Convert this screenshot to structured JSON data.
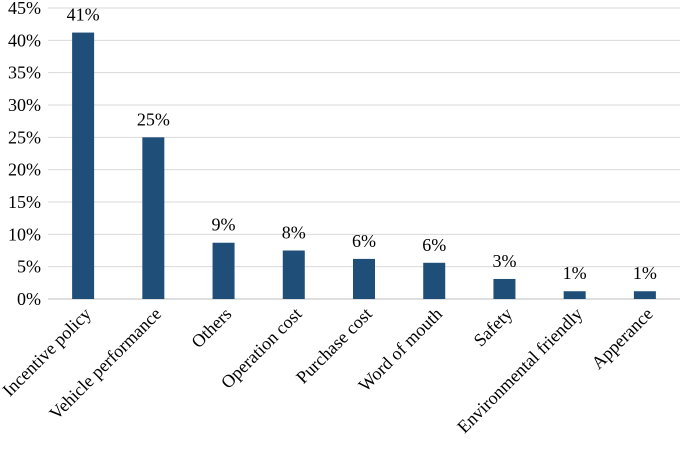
{
  "chart_data": {
    "type": "bar",
    "title": "",
    "xlabel": "",
    "ylabel": "",
    "categories": [
      "Incentive policy",
      "Vehicle performance",
      "Others",
      "Operation cost",
      "Purchase cost",
      "Word of mouth",
      "Safety",
      "Environmental friendly",
      "Apperance"
    ],
    "values": [
      41.2,
      25.0,
      8.7,
      7.5,
      6.2,
      5.6,
      3.1,
      1.2,
      1.2
    ],
    "data_labels": [
      "41%",
      "25%",
      "9%",
      "8%",
      "6%",
      "6%",
      "3%",
      "1%",
      "1%"
    ],
    "ylim": [
      0,
      45
    ],
    "yticks": [
      0,
      5,
      10,
      15,
      20,
      25,
      30,
      35,
      40,
      45
    ],
    "ytick_labels": [
      "0%",
      "5%",
      "10%",
      "15%",
      "20%",
      "25%",
      "30%",
      "35%",
      "40%",
      "45%"
    ],
    "grid": true,
    "legend": "none",
    "bar_color": "#1f4e79"
  }
}
